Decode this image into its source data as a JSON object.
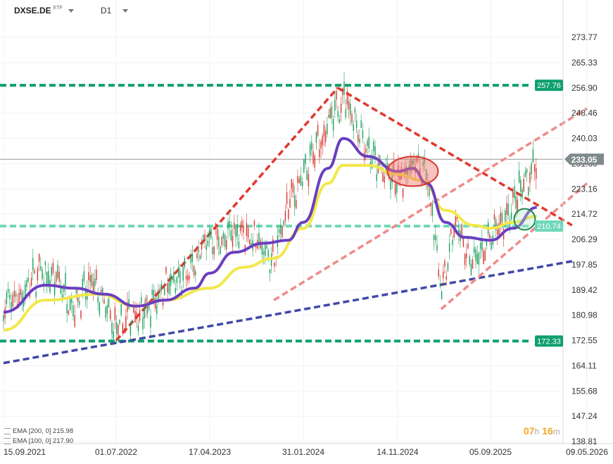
{
  "header": {
    "symbol": "DXSE.DE",
    "symbol_type": "ETF",
    "timeframe": "D1"
  },
  "legend": [
    {
      "label": "EMA [200, 0]",
      "value": "215.98"
    },
    {
      "label": "EMA [100, 0]",
      "value": "217.90"
    }
  ],
  "timer": {
    "hours": "07",
    "h_unit": "h",
    "minutes": "16",
    "m_unit": "m"
  },
  "colors": {
    "green_level": "#0e9f6e",
    "teal_level": "#6fd8b8",
    "red_trend": "#e0382f",
    "pink_channel": "#f08a8a",
    "blue_trend": "#3f48a8",
    "ema_purple": "#6a3fc0",
    "ema_yellow": "#f2e84a",
    "candle_up": "#1a9e5c",
    "candle_down": "#d9342b",
    "price_tag": "#7f8a8c"
  },
  "chart_data": {
    "type": "candlestick",
    "y_ticks": [
      "273.77",
      "265.33",
      "256.90",
      "248.46",
      "240.03",
      "231.60",
      "223.16",
      "214.72",
      "206.29",
      "197.85",
      "189.42",
      "180.98",
      "172.55",
      "164.11",
      "155.68",
      "147.24",
      "138.81"
    ],
    "ylim": [
      138.81,
      273.77
    ],
    "x_ticks": [
      "15.09.2021",
      "01.07.2022",
      "17.04.2023",
      "31.01.2024",
      "14.11.2024",
      "05.09.2025",
      "09.05.2026"
    ],
    "current_price": "233.05",
    "levels": [
      {
        "label": "257.76",
        "value": 257.76,
        "style": "support-resistance"
      },
      {
        "label": "210.74",
        "value": 210.74,
        "style": "support-resistance"
      },
      {
        "label": "172.33",
        "value": 172.33,
        "style": "support-resistance"
      }
    ],
    "price_path": [
      [
        "15.09.2021",
        184
      ],
      [
        "01.11.2021",
        188
      ],
      [
        "15.12.2021",
        195
      ],
      [
        "01.02.2022",
        193
      ],
      [
        "15.03.2022",
        184
      ],
      [
        "01.05.2022",
        192
      ],
      [
        "01.07.2022",
        176
      ],
      [
        "15.08.2022",
        181
      ],
      [
        "01.10.2022",
        182
      ],
      [
        "01.12.2022",
        191
      ],
      [
        "01.02.2023",
        193
      ],
      [
        "17.04.2023",
        207
      ],
      [
        "01.06.2023",
        206
      ],
      [
        "15.07.2023",
        210
      ],
      [
        "01.09.2023",
        206
      ],
      [
        "01.11.2023",
        199
      ],
      [
        "15.12.2023",
        218
      ],
      [
        "31.01.2024",
        227
      ],
      [
        "15.03.2024",
        238
      ],
      [
        "15.05.2024",
        250
      ],
      [
        "01.06.2024",
        255
      ],
      [
        "01.08.2024",
        240
      ],
      [
        "15.09.2024",
        230
      ],
      [
        "14.11.2024",
        225
      ],
      [
        "01.01.2025",
        232
      ],
      [
        "15.02.2025",
        228
      ],
      [
        "01.04.2025",
        190
      ],
      [
        "15.05.2025",
        212
      ],
      [
        "01.07.2025",
        198
      ],
      [
        "05.09.2025",
        206
      ],
      [
        "01.11.2025",
        218
      ],
      [
        "01.01.2026",
        233
      ]
    ],
    "ema200_path": [
      [
        "15.09.2021",
        176
      ],
      [
        "01.01.2022",
        186
      ],
      [
        "15.05.2022",
        188
      ],
      [
        "01.09.2022",
        184
      ],
      [
        "01.12.2022",
        186
      ],
      [
        "17.04.2023",
        190
      ],
      [
        "01.08.2023",
        197
      ],
      [
        "01.11.2023",
        200
      ],
      [
        "31.01.2024",
        210
      ],
      [
        "15.04.2024",
        225
      ],
      [
        "01.06.2024",
        231
      ],
      [
        "15.08.2024",
        231
      ],
      [
        "14.11.2024",
        228
      ],
      [
        "01.02.2025",
        226
      ],
      [
        "15.04.2025",
        216
      ],
      [
        "15.07.2025",
        211
      ],
      [
        "05.09.2025",
        210
      ],
      [
        "01.11.2025",
        212
      ],
      [
        "01.01.2026",
        214
      ]
    ],
    "ema100_path": [
      [
        "15.09.2021",
        182
      ],
      [
        "01.01.2022",
        191
      ],
      [
        "15.03.2022",
        190
      ],
      [
        "01.06.2022",
        188
      ],
      [
        "01.09.2022",
        184
      ],
      [
        "01.12.2022",
        186
      ],
      [
        "01.03.2023",
        190
      ],
      [
        "17.04.2023",
        195
      ],
      [
        "01.07.2023",
        202
      ],
      [
        "01.10.2023",
        205
      ],
      [
        "15.12.2023",
        206
      ],
      [
        "31.01.2024",
        212
      ],
      [
        "15.04.2024",
        230
      ],
      [
        "01.06.2024",
        240
      ],
      [
        "15.08.2024",
        234
      ],
      [
        "14.11.2024",
        229
      ],
      [
        "01.01.2025",
        230
      ],
      [
        "15.02.2025",
        225
      ],
      [
        "15.04.2025",
        212
      ],
      [
        "15.06.2025",
        207
      ],
      [
        "05.09.2025",
        206
      ],
      [
        "01.11.2025",
        210
      ],
      [
        "01.01.2026",
        217
      ]
    ],
    "trendlines": [
      {
        "style": "red",
        "points": [
          [
            "01.07.2022",
            172.5
          ],
          [
            "15.05.2024",
            256.9
          ]
        ]
      },
      {
        "style": "red",
        "points": [
          [
            "15.05.2024",
            256.9
          ],
          [
            "01.04.2026",
            211
          ]
        ]
      },
      {
        "style": "blue",
        "points": [
          [
            "15.09.2021",
            165
          ],
          [
            "01.04.2026",
            199
          ]
        ]
      },
      {
        "style": "pink",
        "points": [
          [
            "01.11.2023",
            186
          ],
          [
            "09.05.2026",
            250
          ]
        ]
      },
      {
        "style": "pink",
        "points": [
          [
            "01.04.2025",
            183
          ],
          [
            "09.05.2026",
            225
          ]
        ]
      }
    ],
    "highlights": [
      {
        "style": "red-ellipse",
        "center": [
          "01.01.2025",
          229
        ],
        "radius": [
          36,
          21
        ]
      },
      {
        "style": "green-circle",
        "center": [
          "01.12.2025",
          213
        ],
        "radius": [
          15,
          15
        ]
      }
    ]
  }
}
